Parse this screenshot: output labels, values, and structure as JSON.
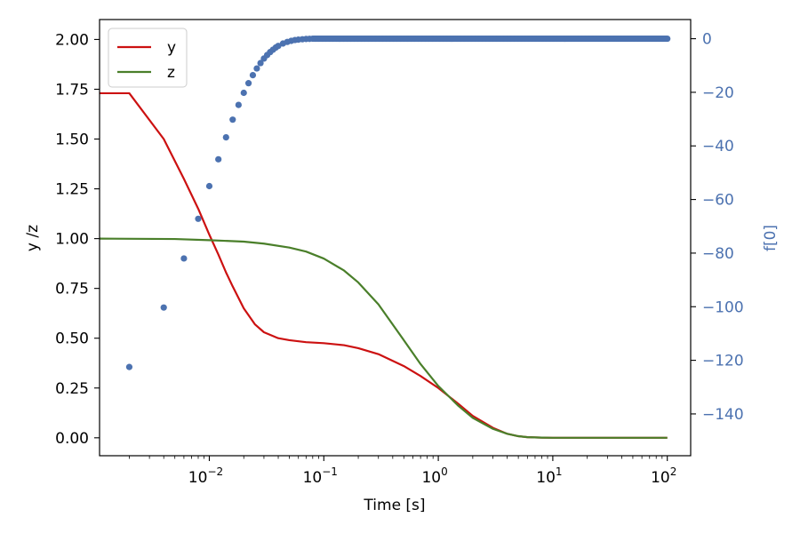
{
  "chart_data": {
    "type": "line",
    "xscale": "log",
    "xlabel": "Time [s]",
    "ylabel": "y /z",
    "y2label": "f[0]",
    "xlim": [
      0.0011,
      160
    ],
    "ylim": [
      -0.09,
      2.1
    ],
    "y2lim": [
      -155.6,
      7.15
    ],
    "x_ticks": [
      {
        "value": 0.01,
        "base": "10",
        "exp": "−2"
      },
      {
        "value": 0.1,
        "base": "10",
        "exp": "−1"
      },
      {
        "value": 1,
        "base": "10",
        "exp": "0"
      },
      {
        "value": 10,
        "base": "10",
        "exp": "1"
      },
      {
        "value": 100,
        "base": "10",
        "exp": "2"
      }
    ],
    "y_ticks": [
      {
        "value": 0.0,
        "label": "0.00"
      },
      {
        "value": 0.25,
        "label": "0.25"
      },
      {
        "value": 0.5,
        "label": "0.50"
      },
      {
        "value": 0.75,
        "label": "0.75"
      },
      {
        "value": 1.0,
        "label": "1.00"
      },
      {
        "value": 1.25,
        "label": "1.25"
      },
      {
        "value": 1.5,
        "label": "1.50"
      },
      {
        "value": 1.75,
        "label": "1.75"
      },
      {
        "value": 2.0,
        "label": "2.00"
      }
    ],
    "y2_ticks": [
      {
        "value": 0,
        "label": "0"
      },
      {
        "value": -20,
        "label": "−20"
      },
      {
        "value": -40,
        "label": "−40"
      },
      {
        "value": -60,
        "label": "−60"
      },
      {
        "value": -80,
        "label": "−80"
      },
      {
        "value": -100,
        "label": "−100"
      },
      {
        "value": -120,
        "label": "−120"
      },
      {
        "value": -140,
        "label": "−140"
      }
    ],
    "legend": {
      "position": "upper-left",
      "entries": [
        {
          "name": "y",
          "color": "#cc1111"
        },
        {
          "name": "z",
          "color": "#4a7f2a"
        }
      ]
    },
    "series": [
      {
        "name": "y",
        "axis": "left",
        "color": "#cc1111",
        "x": [
          0.0011,
          0.002,
          0.004,
          0.006,
          0.008,
          0.01,
          0.012,
          0.014,
          0.016,
          0.02,
          0.025,
          0.03,
          0.04,
          0.05,
          0.07,
          0.1,
          0.15,
          0.2,
          0.3,
          0.5,
          0.7,
          1,
          1.5,
          2,
          3,
          4,
          5,
          6,
          8,
          10,
          20,
          50,
          100
        ],
        "y": [
          1.73,
          1.73,
          1.5,
          1.3,
          1.15,
          1.02,
          0.92,
          0.83,
          0.76,
          0.65,
          0.57,
          0.53,
          0.5,
          0.49,
          0.48,
          0.475,
          0.465,
          0.45,
          0.42,
          0.36,
          0.31,
          0.25,
          0.17,
          0.11,
          0.05,
          0.02,
          0.008,
          0.003,
          0.001,
          0.0,
          0.0,
          0.0,
          0.0
        ]
      },
      {
        "name": "z",
        "axis": "left",
        "color": "#4a7f2a",
        "x": [
          0.0011,
          0.005,
          0.01,
          0.02,
          0.03,
          0.05,
          0.07,
          0.1,
          0.15,
          0.2,
          0.3,
          0.5,
          0.7,
          1,
          1.5,
          2,
          3,
          4,
          5,
          6,
          8,
          10,
          20,
          50,
          100
        ],
        "y": [
          1.0,
          0.998,
          0.992,
          0.985,
          0.975,
          0.955,
          0.935,
          0.9,
          0.84,
          0.78,
          0.67,
          0.49,
          0.37,
          0.26,
          0.16,
          0.1,
          0.045,
          0.02,
          0.008,
          0.003,
          0.001,
          0.0,
          0.0,
          0.0,
          0.0
        ]
      },
      {
        "name": "f[0]",
        "axis": "right",
        "type": "scatter",
        "color": "#4c72b0",
        "x": [
          0.002,
          0.004,
          0.006,
          0.008,
          0.01,
          0.012,
          0.014,
          0.016,
          0.018,
          0.02,
          0.022,
          0.024,
          0.026,
          0.028,
          0.03,
          0.032,
          0.034,
          0.036,
          0.038,
          0.04,
          0.044,
          0.048,
          0.052,
          0.056,
          0.06,
          0.065,
          0.07,
          0.075
        ],
        "y": [
          -122.5,
          -100.3,
          -82.0,
          -67.2,
          -55.0,
          -45.0,
          -36.8,
          -30.2,
          -24.7,
          -20.2,
          -16.6,
          -13.6,
          -11.1,
          -9.1,
          -7.4,
          -6.1,
          -5.0,
          -4.1,
          -3.3,
          -2.7,
          -1.8,
          -1.2,
          -0.8,
          -0.5,
          -0.35,
          -0.2,
          -0.1,
          -0.05
        ],
        "flat_from": 0.08,
        "flat_to": 100,
        "flat_value": 0,
        "flat_count": 300
      }
    ]
  }
}
